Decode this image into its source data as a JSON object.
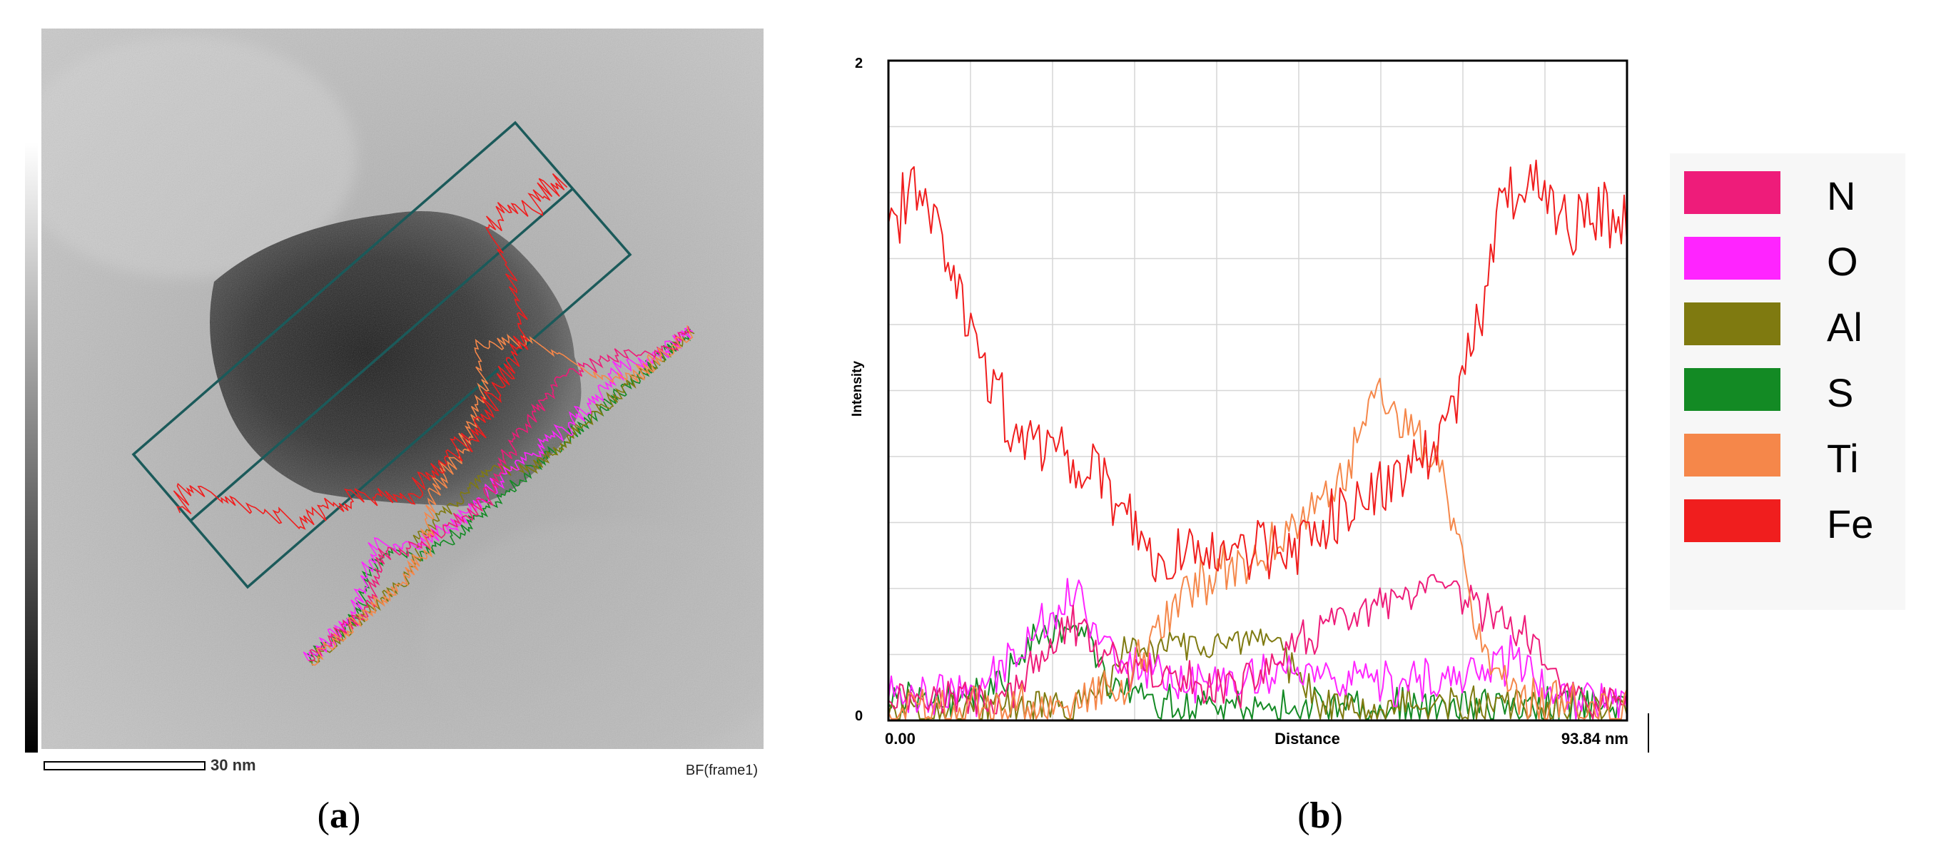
{
  "panel_a": {
    "label": "a",
    "scale_bar_label": "30 nm",
    "frame_label": "BF(frame1)"
  },
  "panel_b": {
    "label": "b"
  },
  "colors": {
    "N": "#ee1c7a",
    "O": "#ff24ff",
    "Al": "#7f7a10",
    "S": "#138a24",
    "Ti": "#f5874a",
    "Fe": "#f01e1e",
    "box": "#1b5a5a"
  },
  "chart_data": {
    "type": "line",
    "title": "",
    "xlabel": "Distance",
    "ylabel": "Intensity",
    "x_unit": "nm",
    "xlim": [
      0,
      93.84
    ],
    "ylim": [
      0,
      2
    ],
    "x_tick_labels": [
      "0.00",
      "93.84 nm"
    ],
    "y_tick_labels": [
      "0",
      "2"
    ],
    "grid": true,
    "legend_position": "right",
    "series": [
      {
        "name": "N",
        "profile": [
          [
            0,
            0.08
          ],
          [
            15,
            0.06
          ],
          [
            18,
            0.14
          ],
          [
            23,
            0.3
          ],
          [
            30,
            0.14
          ],
          [
            45,
            0.1
          ],
          [
            55,
            0.28
          ],
          [
            65,
            0.36
          ],
          [
            70,
            0.4
          ],
          [
            80,
            0.28
          ],
          [
            88,
            0.05
          ],
          [
            93.84,
            0.06
          ]
        ],
        "noise": 0.07
      },
      {
        "name": "O",
        "profile": [
          [
            0,
            0.09
          ],
          [
            12,
            0.08
          ],
          [
            16,
            0.22
          ],
          [
            24,
            0.4
          ],
          [
            28,
            0.2
          ],
          [
            40,
            0.1
          ],
          [
            50,
            0.16
          ],
          [
            60,
            0.1
          ],
          [
            72,
            0.12
          ],
          [
            80,
            0.2
          ],
          [
            85,
            0.05
          ],
          [
            93.84,
            0.08
          ]
        ],
        "noise": 0.08
      },
      {
        "name": "Al",
        "profile": [
          [
            0,
            0.03
          ],
          [
            25,
            0.04
          ],
          [
            30,
            0.2
          ],
          [
            40,
            0.24
          ],
          [
            50,
            0.2
          ],
          [
            55,
            0.05
          ],
          [
            93.84,
            0.03
          ]
        ],
        "noise": 0.07
      },
      {
        "name": "S",
        "profile": [
          [
            0,
            0.06
          ],
          [
            13,
            0.08
          ],
          [
            18,
            0.25
          ],
          [
            24,
            0.32
          ],
          [
            28,
            0.1
          ],
          [
            35,
            0.04
          ],
          [
            93.84,
            0.04
          ]
        ],
        "noise": 0.07
      },
      {
        "name": "Ti",
        "profile": [
          [
            0,
            0.03
          ],
          [
            20,
            0.03
          ],
          [
            30,
            0.12
          ],
          [
            38,
            0.4
          ],
          [
            50,
            0.55
          ],
          [
            58,
            0.75
          ],
          [
            62,
            1.02
          ],
          [
            66,
            0.9
          ],
          [
            70,
            0.8
          ],
          [
            73,
            0.45
          ],
          [
            76,
            0.15
          ],
          [
            80,
            0.05
          ],
          [
            93.84,
            0.03
          ]
        ],
        "noise": 0.09
      },
      {
        "name": "Fe",
        "profile": [
          [
            0,
            1.5
          ],
          [
            4,
            1.62
          ],
          [
            8,
            1.38
          ],
          [
            12,
            1.05
          ],
          [
            16,
            0.88
          ],
          [
            20,
            0.85
          ],
          [
            25,
            0.76
          ],
          [
            30,
            0.64
          ],
          [
            35,
            0.48
          ],
          [
            40,
            0.52
          ],
          [
            45,
            0.5
          ],
          [
            50,
            0.5
          ],
          [
            55,
            0.6
          ],
          [
            60,
            0.66
          ],
          [
            65,
            0.72
          ],
          [
            70,
            0.86
          ],
          [
            73,
            1.02
          ],
          [
            76,
            1.3
          ],
          [
            78,
            1.58
          ],
          [
            81,
            1.62
          ],
          [
            86,
            1.52
          ],
          [
            90,
            1.55
          ],
          [
            93.84,
            1.48
          ]
        ],
        "noise": 0.12
      }
    ]
  }
}
